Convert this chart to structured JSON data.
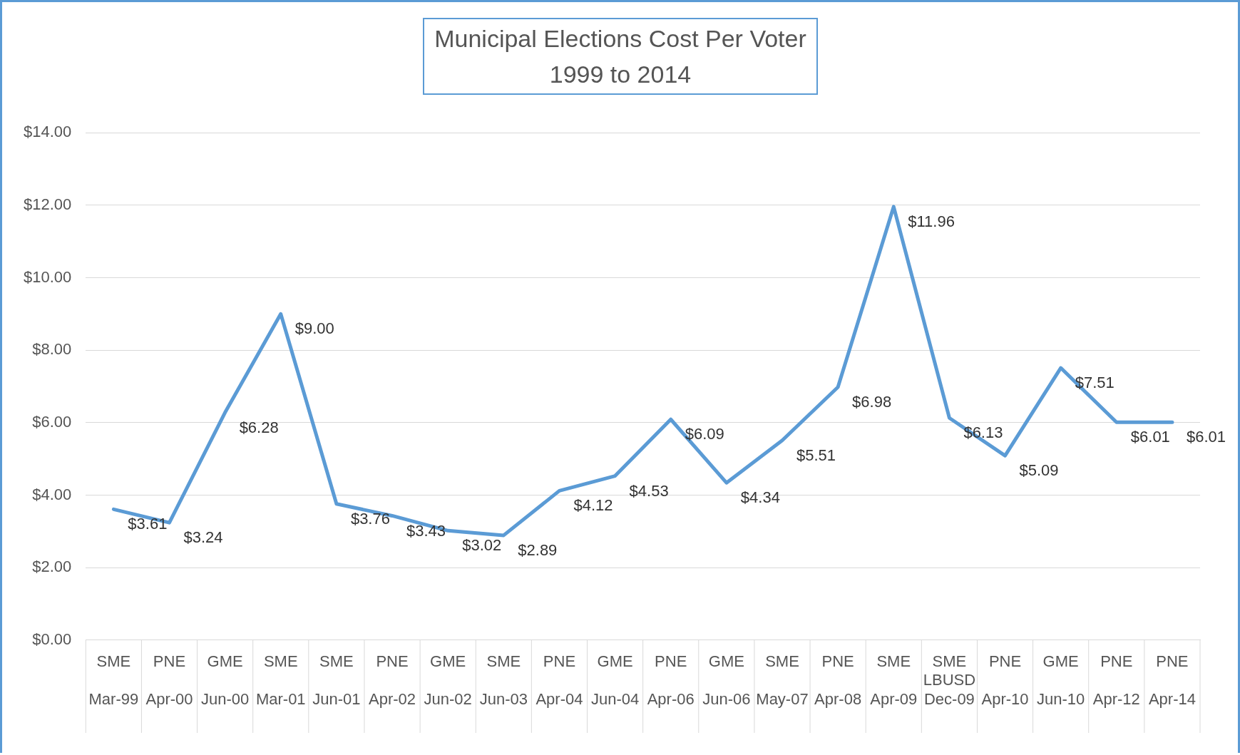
{
  "chart_data": {
    "type": "line",
    "title": "Municipal Elections  Cost Per Voter\n1999 to 2014",
    "categories": [
      "SME\nMar-99",
      "PNE\nApr-00",
      "GME\nJun-00",
      "SME\nMar-01",
      "SME\nJun-01",
      "PNE\nApr-02",
      "GME\nJun-02",
      "SME\nJun-03",
      "PNE\nApr-04",
      "GME\nJun-04",
      "PNE\nApr-06",
      "GME\nJun-06",
      "SME\nMay-07",
      "PNE\nApr-08",
      "SME\nApr-09",
      "SME\nLBUSD\nDec-09",
      "PNE\nApr-10",
      "GME\nJun-10",
      "PNE\nApr-12",
      "PNE\nApr-14"
    ],
    "series": [
      {
        "color": "#5b9bd5",
        "values": [
          3.61,
          3.24,
          6.28,
          9.0,
          3.76,
          3.43,
          3.02,
          2.89,
          4.12,
          4.53,
          6.09,
          4.34,
          5.51,
          6.98,
          11.96,
          6.13,
          5.09,
          7.51,
          6.01,
          6.01
        ],
        "value_labels": [
          "$3.61",
          "$3.24",
          "$6.28",
          "$9.00",
          "$3.76",
          "$3.43",
          "$3.02",
          "$2.89",
          "$4.12",
          "$4.53",
          "$6.09",
          "$4.34",
          "$5.51",
          "$6.98",
          "$11.96",
          "$6.13",
          "$5.09",
          "$7.51",
          "$6.01",
          "$6.01"
        ]
      }
    ],
    "ylim": [
      0,
      14
    ],
    "yticks": [
      {
        "value": 0,
        "label": "$0.00"
      },
      {
        "value": 2,
        "label": "$2.00"
      },
      {
        "value": 4,
        "label": "$4.00"
      },
      {
        "value": 6,
        "label": "$6.00"
      },
      {
        "value": 8,
        "label": "$8.00"
      },
      {
        "value": 10,
        "label": "$10.00"
      },
      {
        "value": 12,
        "label": "$12.00"
      },
      {
        "value": 14,
        "label": "$14.00"
      }
    ],
    "grid": "y",
    "legend": false,
    "marker": "none",
    "line_style": "solid"
  }
}
